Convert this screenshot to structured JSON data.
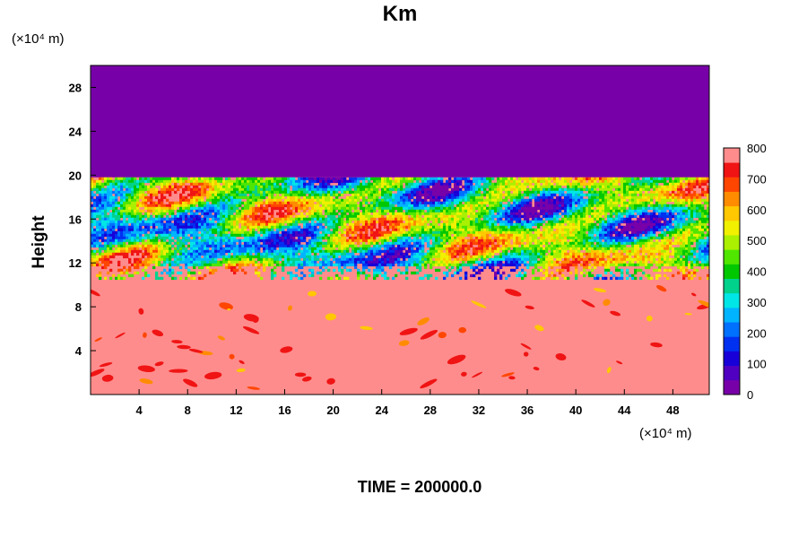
{
  "chart_data": {
    "type": "heatmap",
    "title": "Km",
    "ylabel": "Height",
    "x_unit": "(×10⁴ m)",
    "y_unit": "(×10⁴ m)",
    "x_ticks": [
      "4",
      "8",
      "12",
      "16",
      "20",
      "24",
      "28",
      "32",
      "36",
      "40",
      "44",
      "48"
    ],
    "y_ticks": [
      "4",
      "8",
      "12",
      "16",
      "20",
      "24",
      "28"
    ],
    "xlim": [
      0,
      51
    ],
    "ylim": [
      0,
      30
    ],
    "colorbar": {
      "min": 0,
      "max": 800,
      "tick_labels": [
        "0",
        "100",
        "200",
        "300",
        "400",
        "500",
        "600",
        "700",
        "800"
      ],
      "colors": [
        "#7800a8",
        "#5000c0",
        "#1800d8",
        "#0030f0",
        "#0070ff",
        "#00b4ff",
        "#00e6e6",
        "#00d28c",
        "#00c800",
        "#50e600",
        "#aaf000",
        "#f0f000",
        "#ffc800",
        "#ff8c00",
        "#ff4600",
        "#f01414",
        "#ff8c8c"
      ]
    },
    "regions": [
      {
        "description": "upper layer",
        "y_range": [
          19.8,
          30
        ],
        "value": 0
      },
      {
        "description": "turbulent layer",
        "y_range": [
          10.5,
          19.8
        ],
        "value": "mixed 0-800"
      },
      {
        "description": "lower layer",
        "y_range": [
          0,
          10.5
        ],
        "value": 800
      }
    ],
    "annotation": "TIME = 200000.0"
  }
}
